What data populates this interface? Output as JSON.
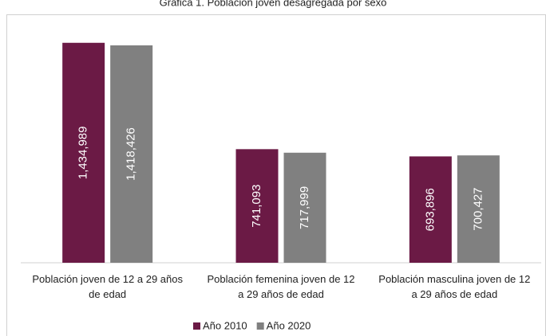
{
  "chart_data": {
    "type": "bar",
    "title": "Gráfica 1. Población joven desagregada por sexo",
    "categories": [
      "Población joven de 12 a 29 años de edad",
      "Población femenina joven de 12 a 29 años de edad",
      "Población masculina joven de 12 a 29 años de edad"
    ],
    "series": [
      {
        "name": "Año 2010",
        "color": "#6b1a45",
        "values": [
          1434989,
          741093,
          693896
        ],
        "value_labels": [
          "1,434,989",
          "741,093",
          "693,896"
        ]
      },
      {
        "name": "Año 2020",
        "color": "#808080",
        "values": [
          1418426,
          717999,
          700427
        ],
        "value_labels": [
          "1,418,426",
          "717,999",
          "700,427"
        ]
      }
    ],
    "ylim": [
      0,
      1600000
    ],
    "legend": "bottom"
  }
}
